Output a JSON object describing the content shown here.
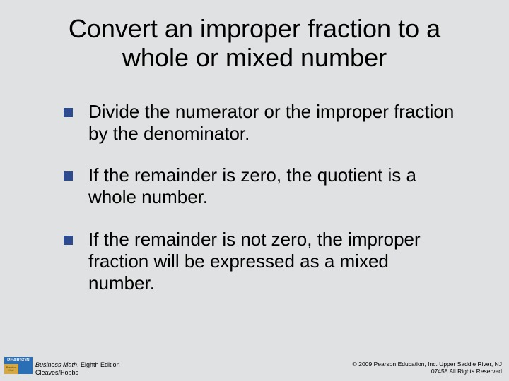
{
  "slide": {
    "background_color": "#dfe1e2",
    "title": "Convert an improper fraction to a whole or mixed number",
    "title_fontsize": 36,
    "bullets": [
      {
        "text": "Divide the numerator or the improper fraction by the denominator."
      },
      {
        "text": "If the remainder is zero, the quotient is a whole number."
      },
      {
        "text": "If the remainder is not zero, the improper fraction will be expressed as a mixed number."
      }
    ],
    "bullet_marker_color": "#2e4b8f",
    "bullet_fontsize": 26
  },
  "footer": {
    "logo": {
      "brand": "PEARSON",
      "sub_left": "Prentice Hall",
      "top_bg": "#2a6fb5",
      "gold_bg": "#d4a842"
    },
    "book_title": "Business Math",
    "book_edition": ", Eighth Edition",
    "authors": "Cleaves/Hobbs",
    "copyright_line1": "© 2009 Pearson Education, Inc. Upper Saddle River, NJ",
    "copyright_line2": "07458  All Rights Reserved"
  }
}
